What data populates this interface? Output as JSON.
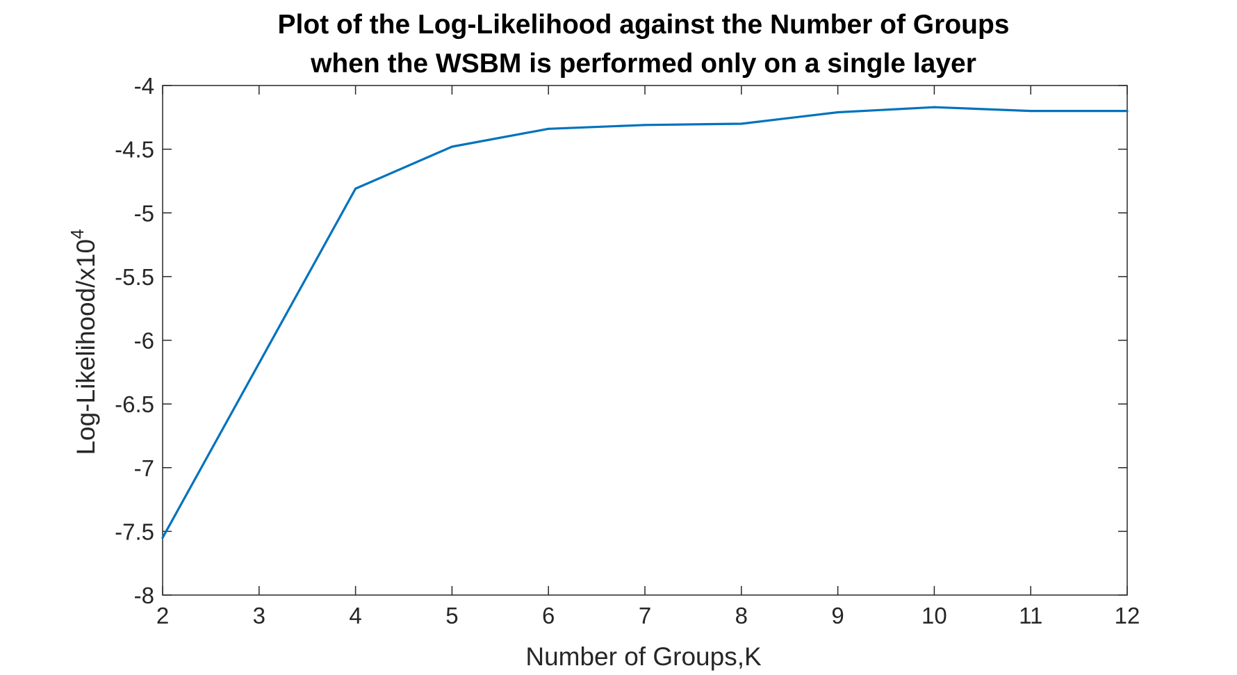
{
  "chart_data": {
    "type": "line",
    "title_lines": [
      "Plot of the Log-Likelihood against the Number of Groups",
      "when the WSBM is performed only on a single layer"
    ],
    "xlabel": "Number of Groups,K",
    "ylabel": "Log-Likelihood/x10",
    "ylabel_exponent": "4",
    "xlim": [
      2,
      12
    ],
    "ylim": [
      -8,
      -4
    ],
    "xticks": [
      "2",
      "3",
      "4",
      "5",
      "6",
      "7",
      "8",
      "9",
      "10",
      "11",
      "12"
    ],
    "yticks": [
      "-4",
      "-4.5",
      "-5",
      "-5.5",
      "-6",
      "-6.5",
      "-7",
      "-7.5",
      "-8"
    ],
    "grid": false,
    "series": [
      {
        "color": "#0072BD",
        "x": [
          2,
          4,
          5,
          6,
          7,
          8,
          9,
          10,
          11,
          12
        ],
        "y": [
          -7.55,
          -4.81,
          -4.48,
          -4.34,
          -4.31,
          -4.3,
          -4.21,
          -4.17,
          -4.2,
          -4.2
        ]
      }
    ]
  }
}
